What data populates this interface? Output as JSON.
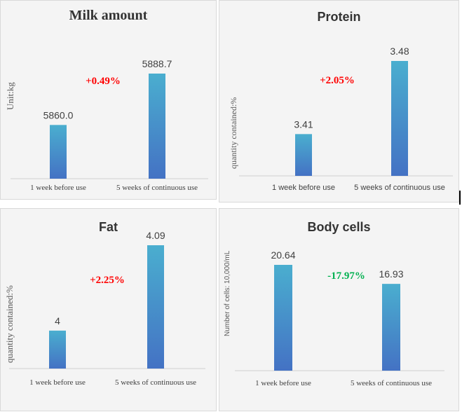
{
  "chart_data": [
    {
      "type": "bar",
      "title": "Milk amount",
      "ylabel": "Unit:kg",
      "xlabel": "",
      "categories": [
        "1 week before use",
        "5 weeks of continuous use"
      ],
      "series": [
        {
          "values": [
            5860.0,
            5888.7
          ]
        }
      ],
      "value_labels": [
        "5860.0",
        "5888.7"
      ],
      "ylim": [
        5830,
        5895
      ],
      "change_label": "+0.49%",
      "change_color": "#ff0000",
      "bar_gradient": [
        "#4aaecf",
        "#4472c4"
      ],
      "grid": false,
      "legend": "none"
    },
    {
      "type": "bar",
      "title": "Protein",
      "ylabel": "quantity contained:%",
      "xlabel": "",
      "categories": [
        "1 week before use",
        "5 weeks of continuous use"
      ],
      "series": [
        {
          "values": [
            3.41,
            3.48
          ]
        }
      ],
      "value_labels": [
        "3.41",
        "3.48"
      ],
      "ylim": [
        3.37,
        3.5
      ],
      "change_label": "+2.05%",
      "change_color": "#ff0000",
      "bar_gradient": [
        "#4aaecf",
        "#4472c4"
      ],
      "grid": false,
      "legend": "none"
    },
    {
      "type": "bar",
      "title": "Fat",
      "ylabel": "quantity contained:%",
      "xlabel": "",
      "categories": [
        "1 week before use",
        "5 weeks of continuous use"
      ],
      "series": [
        {
          "values": [
            4,
            4.09
          ]
        }
      ],
      "value_labels": [
        "4",
        "4.09"
      ],
      "ylim": [
        3.96,
        4.1
      ],
      "change_label": "+2.25%",
      "change_color": "#ff0000",
      "bar_gradient": [
        "#4aaecf",
        "#4472c4"
      ],
      "grid": false,
      "legend": "none"
    },
    {
      "type": "bar",
      "title": "Body cells",
      "ylabel": "Number of cells: 10,000/mL",
      "xlabel": "",
      "categories": [
        "1 week before use",
        "5 weeks of continuous use"
      ],
      "series": [
        {
          "values": [
            20.64,
            16.93
          ]
        }
      ],
      "value_labels": [
        "20.64",
        "16.93"
      ],
      "ylim": [
        0,
        23
      ],
      "change_label": "-17.97%",
      "change_color": "#00b050",
      "bar_gradient": [
        "#4aaecf",
        "#4472c4"
      ],
      "grid": false,
      "legend": "none"
    }
  ]
}
